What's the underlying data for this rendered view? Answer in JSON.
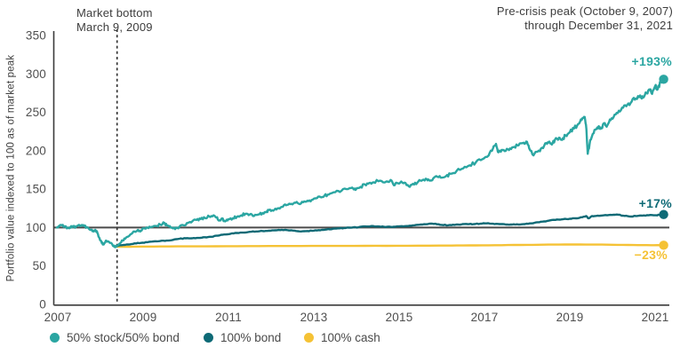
{
  "header": {
    "line1": "Pre-crisis peak (October 9, 2007)",
    "line2": "through December 31, 2021"
  },
  "annotation": {
    "line1": "Market bottom",
    "line2": "March 9, 2009"
  },
  "y_axis_title": "Portfolio value indexed to 100 as of market peak",
  "colors": {
    "axis": "#3c3c3c",
    "reference_line": "#4a4a4a",
    "tick_text": "#4f4f4f",
    "dotted_line": "#2e2e2e"
  },
  "chart_data": {
    "type": "line",
    "title": "",
    "xlabel": "",
    "ylabel": "Portfolio value indexed to 100 as of market peak",
    "x_ticks": [
      2007,
      2009,
      2011,
      2013,
      2015,
      2017,
      2019,
      2021
    ],
    "y_ticks": [
      0,
      50,
      100,
      150,
      200,
      250,
      300,
      350
    ],
    "ylim": [
      0,
      350
    ],
    "x_range_years": [
      2007.8,
      2022.0
    ],
    "grid": "off",
    "legend_position": "bottom",
    "reference_line": 100,
    "market_bottom_x": 2009.19,
    "series": [
      {
        "name": "50% stock/50% bond",
        "color": "#2BA6A2",
        "end_label": "+193%",
        "end_value": 293,
        "noise": 1.5,
        "points": [
          [
            2007.78,
            100
          ],
          [
            2007.84,
            102
          ],
          [
            2007.9,
            103
          ],
          [
            2007.97,
            101
          ],
          [
            2008.03,
            99.5
          ],
          [
            2008.1,
            101
          ],
          [
            2008.16,
            102
          ],
          [
            2008.22,
            101
          ],
          [
            2008.28,
            103
          ],
          [
            2008.35,
            103
          ],
          [
            2008.42,
            102
          ],
          [
            2008.5,
            100
          ],
          [
            2008.56,
            97
          ],
          [
            2008.63,
            96
          ],
          [
            2008.68,
            97
          ],
          [
            2008.73,
            93
          ],
          [
            2008.78,
            86
          ],
          [
            2008.83,
            80
          ],
          [
            2008.88,
            78
          ],
          [
            2008.93,
            83
          ],
          [
            2008.98,
            82
          ],
          [
            2009.03,
            80
          ],
          [
            2009.08,
            78
          ],
          [
            2009.13,
            75
          ],
          [
            2009.19,
            76
          ],
          [
            2009.25,
            79
          ],
          [
            2009.32,
            83
          ],
          [
            2009.4,
            87
          ],
          [
            2009.5,
            91
          ],
          [
            2009.6,
            95
          ],
          [
            2009.68,
            97
          ],
          [
            2009.75,
            96
          ],
          [
            2009.82,
            99
          ],
          [
            2009.9,
            100
          ],
          [
            2010.0,
            101
          ],
          [
            2010.1,
            102
          ],
          [
            2010.2,
            104
          ],
          [
            2010.3,
            106
          ],
          [
            2010.35,
            103
          ],
          [
            2010.45,
            100
          ],
          [
            2010.55,
            98
          ],
          [
            2010.65,
            101
          ],
          [
            2010.75,
            103
          ],
          [
            2010.85,
            106
          ],
          [
            2010.95,
            108
          ],
          [
            2011.05,
            110
          ],
          [
            2011.15,
            111
          ],
          [
            2011.25,
            112.5
          ],
          [
            2011.35,
            114.5
          ],
          [
            2011.45,
            116
          ],
          [
            2011.52,
            113
          ],
          [
            2011.58,
            109
          ],
          [
            2011.65,
            112
          ],
          [
            2011.72,
            108
          ],
          [
            2011.8,
            111
          ],
          [
            2011.9,
            112
          ],
          [
            2012.0,
            114
          ],
          [
            2012.1,
            116
          ],
          [
            2012.2,
            118
          ],
          [
            2012.3,
            117
          ],
          [
            2012.4,
            115
          ],
          [
            2012.5,
            117
          ],
          [
            2012.6,
            119
          ],
          [
            2012.7,
            121
          ],
          [
            2012.75,
            123
          ],
          [
            2012.85,
            122
          ],
          [
            2012.95,
            125
          ],
          [
            2013.05,
            127
          ],
          [
            2013.15,
            129
          ],
          [
            2013.25,
            130.5
          ],
          [
            2013.35,
            132.5
          ],
          [
            2013.45,
            131
          ],
          [
            2013.55,
            133
          ],
          [
            2013.65,
            135
          ],
          [
            2013.75,
            136
          ],
          [
            2013.85,
            138
          ],
          [
            2013.95,
            140
          ],
          [
            2014.05,
            141.5
          ],
          [
            2014.15,
            143
          ],
          [
            2014.3,
            146
          ],
          [
            2014.45,
            148
          ],
          [
            2014.6,
            150
          ],
          [
            2014.7,
            152
          ],
          [
            2014.78,
            149
          ],
          [
            2014.9,
            153
          ],
          [
            2015.0,
            156
          ],
          [
            2015.1,
            158
          ],
          [
            2015.2,
            159
          ],
          [
            2015.35,
            161
          ],
          [
            2015.5,
            160
          ],
          [
            2015.6,
            162
          ],
          [
            2015.68,
            155
          ],
          [
            2015.75,
            158
          ],
          [
            2015.85,
            160
          ],
          [
            2015.95,
            158
          ],
          [
            2016.05,
            153
          ],
          [
            2016.15,
            156
          ],
          [
            2016.25,
            160
          ],
          [
            2016.35,
            162
          ],
          [
            2016.45,
            163
          ],
          [
            2016.52,
            161
          ],
          [
            2016.6,
            164
          ],
          [
            2016.7,
            166
          ],
          [
            2016.8,
            165
          ],
          [
            2016.9,
            167
          ],
          [
            2017.0,
            170
          ],
          [
            2017.15,
            174
          ],
          [
            2017.3,
            177
          ],
          [
            2017.45,
            181
          ],
          [
            2017.6,
            185
          ],
          [
            2017.75,
            189
          ],
          [
            2017.9,
            194
          ],
          [
            2018.0,
            203
          ],
          [
            2018.07,
            209
          ],
          [
            2018.13,
            198
          ],
          [
            2018.2,
            201
          ],
          [
            2018.3,
            200
          ],
          [
            2018.4,
            203
          ],
          [
            2018.5,
            205
          ],
          [
            2018.6,
            207
          ],
          [
            2018.7,
            210
          ],
          [
            2018.78,
            212
          ],
          [
            2018.85,
            203
          ],
          [
            2018.95,
            194
          ],
          [
            2019.05,
            199
          ],
          [
            2019.15,
            204
          ],
          [
            2019.25,
            210
          ],
          [
            2019.32,
            212
          ],
          [
            2019.38,
            208
          ],
          [
            2019.45,
            214
          ],
          [
            2019.55,
            217
          ],
          [
            2019.62,
            214
          ],
          [
            2019.7,
            220
          ],
          [
            2019.8,
            224
          ],
          [
            2019.9,
            229
          ],
          [
            2020.0,
            235
          ],
          [
            2020.08,
            240
          ],
          [
            2020.15,
            244
          ],
          [
            2020.19,
            228
          ],
          [
            2020.22,
            196
          ],
          [
            2020.28,
            214
          ],
          [
            2020.34,
            222
          ],
          [
            2020.42,
            228
          ],
          [
            2020.48,
            232
          ],
          [
            2020.54,
            229
          ],
          [
            2020.62,
            236
          ],
          [
            2020.68,
            233
          ],
          [
            2020.76,
            240
          ],
          [
            2020.85,
            247
          ],
          [
            2020.95,
            252
          ],
          [
            2021.05,
            256
          ],
          [
            2021.15,
            260
          ],
          [
            2021.25,
            264
          ],
          [
            2021.35,
            268
          ],
          [
            2021.45,
            272
          ],
          [
            2021.52,
            269
          ],
          [
            2021.6,
            275
          ],
          [
            2021.68,
            279
          ],
          [
            2021.73,
            274
          ],
          [
            2021.8,
            284
          ],
          [
            2021.86,
            280
          ],
          [
            2021.93,
            289
          ],
          [
            2022.0,
            293
          ]
        ]
      },
      {
        "name": "100% bond",
        "color": "#0E6A76",
        "end_label": "+17%",
        "end_value": 117,
        "noise": 0.45,
        "points": [
          [
            2009.19,
            76
          ],
          [
            2009.3,
            77
          ],
          [
            2009.45,
            78
          ],
          [
            2009.6,
            79.5
          ],
          [
            2009.75,
            80
          ],
          [
            2009.9,
            81
          ],
          [
            2010.05,
            82
          ],
          [
            2010.2,
            82.5
          ],
          [
            2010.35,
            83
          ],
          [
            2010.5,
            84
          ],
          [
            2010.65,
            85.5
          ],
          [
            2010.8,
            86
          ],
          [
            2010.95,
            86
          ],
          [
            2011.1,
            86.5
          ],
          [
            2011.25,
            87.5
          ],
          [
            2011.4,
            88
          ],
          [
            2011.55,
            89.5
          ],
          [
            2011.7,
            91
          ],
          [
            2011.85,
            92
          ],
          [
            2012.0,
            93
          ],
          [
            2012.15,
            93.5
          ],
          [
            2012.3,
            94.5
          ],
          [
            2012.45,
            95
          ],
          [
            2012.6,
            95.5
          ],
          [
            2012.75,
            96
          ],
          [
            2012.9,
            96.5
          ],
          [
            2013.05,
            97
          ],
          [
            2013.2,
            96.5
          ],
          [
            2013.35,
            96
          ],
          [
            2013.5,
            95
          ],
          [
            2013.65,
            95.5
          ],
          [
            2013.8,
            96
          ],
          [
            2013.95,
            96.5
          ],
          [
            2014.1,
            97.5
          ],
          [
            2014.25,
            98.5
          ],
          [
            2014.4,
            99
          ],
          [
            2014.55,
            99.5
          ],
          [
            2014.7,
            100
          ],
          [
            2014.85,
            100.5
          ],
          [
            2015.0,
            101.5
          ],
          [
            2015.15,
            102
          ],
          [
            2015.3,
            101.5
          ],
          [
            2015.45,
            101
          ],
          [
            2015.6,
            101
          ],
          [
            2015.75,
            101.5
          ],
          [
            2015.9,
            101.5
          ],
          [
            2016.05,
            102.5
          ],
          [
            2016.2,
            103.5
          ],
          [
            2016.35,
            104
          ],
          [
            2016.5,
            105
          ],
          [
            2016.65,
            105
          ],
          [
            2016.8,
            103.5
          ],
          [
            2016.95,
            103
          ],
          [
            2017.1,
            103.5
          ],
          [
            2017.25,
            104
          ],
          [
            2017.4,
            104.5
          ],
          [
            2017.55,
            104.5
          ],
          [
            2017.7,
            105
          ],
          [
            2017.85,
            105.5
          ],
          [
            2018.0,
            105
          ],
          [
            2018.15,
            104.5
          ],
          [
            2018.3,
            104
          ],
          [
            2018.45,
            104
          ],
          [
            2018.6,
            104
          ],
          [
            2018.75,
            104.5
          ],
          [
            2018.9,
            105.5
          ],
          [
            2019.05,
            107
          ],
          [
            2019.2,
            108
          ],
          [
            2019.35,
            109.5
          ],
          [
            2019.5,
            110.5
          ],
          [
            2019.65,
            111
          ],
          [
            2019.8,
            111.5
          ],
          [
            2019.95,
            112
          ],
          [
            2020.1,
            113.5
          ],
          [
            2020.18,
            115
          ],
          [
            2020.24,
            112
          ],
          [
            2020.32,
            115
          ],
          [
            2020.45,
            115.5
          ],
          [
            2020.6,
            116
          ],
          [
            2020.75,
            116.5
          ],
          [
            2020.9,
            117
          ],
          [
            2021.05,
            115.5
          ],
          [
            2021.2,
            114.5
          ],
          [
            2021.35,
            115
          ],
          [
            2021.5,
            115.5
          ],
          [
            2021.65,
            116
          ],
          [
            2021.8,
            116
          ],
          [
            2021.9,
            116.5
          ],
          [
            2022.0,
            117
          ]
        ]
      },
      {
        "name": "100% cash",
        "color": "#F5C235",
        "end_label": "−23%",
        "end_value": 77,
        "noise": 0.08,
        "points": [
          [
            2009.19,
            75
          ],
          [
            2009.6,
            75.2
          ],
          [
            2010.2,
            75.4
          ],
          [
            2011.0,
            75.6
          ],
          [
            2012.0,
            75.8
          ],
          [
            2013.0,
            76
          ],
          [
            2014.0,
            76.1
          ],
          [
            2015.0,
            76.2
          ],
          [
            2016.0,
            76.4
          ],
          [
            2017.0,
            76.6
          ],
          [
            2017.6,
            76.8
          ],
          [
            2018.2,
            77.1
          ],
          [
            2018.8,
            77.5
          ],
          [
            2019.3,
            77.8
          ],
          [
            2019.8,
            78
          ],
          [
            2020.3,
            77.9
          ],
          [
            2020.8,
            77.6
          ],
          [
            2021.3,
            77.3
          ],
          [
            2021.7,
            77.1
          ],
          [
            2022.0,
            77
          ]
        ]
      }
    ]
  }
}
